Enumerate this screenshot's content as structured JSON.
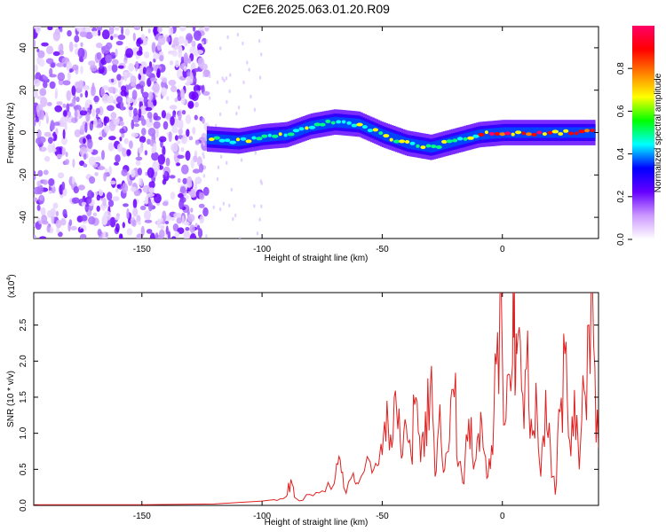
{
  "title": "C2E6.2025.063.01.20.R09",
  "chart_data": [
    {
      "type": "heatmap",
      "xlabel": "Height of straight line (km)",
      "ylabel": "Frequency (Hz)",
      "xlim": [
        -195,
        40
      ],
      "ylim": [
        -50,
        50
      ],
      "xticks": [
        -150,
        -100,
        -50,
        0
      ],
      "yticks": [
        -40,
        -20,
        0,
        20,
        40
      ],
      "colorbar": {
        "label": "Normalized spectral amplitude",
        "range": [
          0.0,
          1.0
        ],
        "ticks": [
          0.0,
          0.2,
          0.4,
          0.6,
          0.8
        ],
        "colors": [
          "#ffffff",
          "#cc99ff",
          "#6600ff",
          "#0000ff",
          "#00ffff",
          "#00ff00",
          "#ffff00",
          "#ff8000",
          "#ff0000",
          "#ff0066"
        ]
      },
      "ridge": {
        "start_height_km": -123,
        "points": [
          [
            -123,
            -3
          ],
          [
            -110,
            -4
          ],
          [
            -100,
            -2
          ],
          [
            -90,
            -1
          ],
          [
            -80,
            3
          ],
          [
            -70,
            5
          ],
          [
            -60,
            4
          ],
          [
            -50,
            -1
          ],
          [
            -40,
            -5
          ],
          [
            -30,
            -7
          ],
          [
            -20,
            -4
          ],
          [
            -10,
            -1
          ],
          [
            0,
            0
          ],
          [
            10,
            0
          ],
          [
            20,
            0
          ],
          [
            30,
            0
          ],
          [
            38,
            0
          ]
        ]
      },
      "noise_region_km": [
        -195,
        -123
      ]
    },
    {
      "type": "line",
      "xlabel": "Height of straight line (km)",
      "ylabel": "SNR (10 * v/v)",
      "yscale_note": "(x10",
      "yscale_exp": "4",
      "xlim": [
        -195,
        40
      ],
      "ylim": [
        0.0,
        2.95
      ],
      "xticks": [
        -150,
        -100,
        -50,
        0
      ],
      "yticks": [
        0.0,
        0.5,
        1.0,
        1.5,
        2.0,
        2.5
      ],
      "ytick_labels": [
        "0.0",
        "0.5",
        "1.0",
        "1.5",
        "2.0",
        "2.5"
      ],
      "series": [
        {
          "color": "#e02020",
          "x": [
            -195,
            -150,
            -120,
            -110,
            -100,
            -95,
            -90,
            -88,
            -86,
            -80,
            -75,
            -70,
            -68,
            -66,
            -62,
            -60,
            -55,
            -52,
            -50,
            -48,
            -46,
            -44,
            -42,
            -40,
            -38,
            -36,
            -34,
            -32,
            -30,
            -28,
            -26,
            -24,
            -22,
            -20,
            -18,
            -16,
            -14,
            -12,
            -10,
            -8,
            -6,
            -4,
            -2,
            0,
            2,
            4,
            5,
            6,
            8,
            10,
            12,
            14,
            16,
            18,
            20,
            22,
            24,
            26,
            28,
            30,
            32,
            34,
            36,
            38,
            40
          ],
          "y": [
            0.01,
            0.01,
            0.02,
            0.04,
            0.06,
            0.08,
            0.12,
            0.36,
            0.1,
            0.15,
            0.2,
            0.3,
            0.68,
            0.25,
            0.45,
            0.3,
            0.6,
            0.55,
            0.7,
            1.45,
            0.8,
            1.3,
            0.65,
            1.1,
            0.7,
            1.5,
            0.6,
            1.3,
            1.65,
            0.4,
            1.4,
            0.5,
            0.9,
            1.5,
            0.6,
            0.3,
            1.2,
            0.5,
            1.0,
            0.8,
            0.4,
            0.7,
            2.4,
            2.1,
            1.8,
            1.85,
            2.95,
            2.1,
            1.6,
            1.9,
            1.2,
            1.7,
            0.4,
            1.6,
            0.8,
            0.15,
            1.3,
            2.1,
            0.9,
            1.6,
            0.5,
            1.6,
            2.5,
            2.2,
            0.8
          ]
        }
      ]
    }
  ]
}
